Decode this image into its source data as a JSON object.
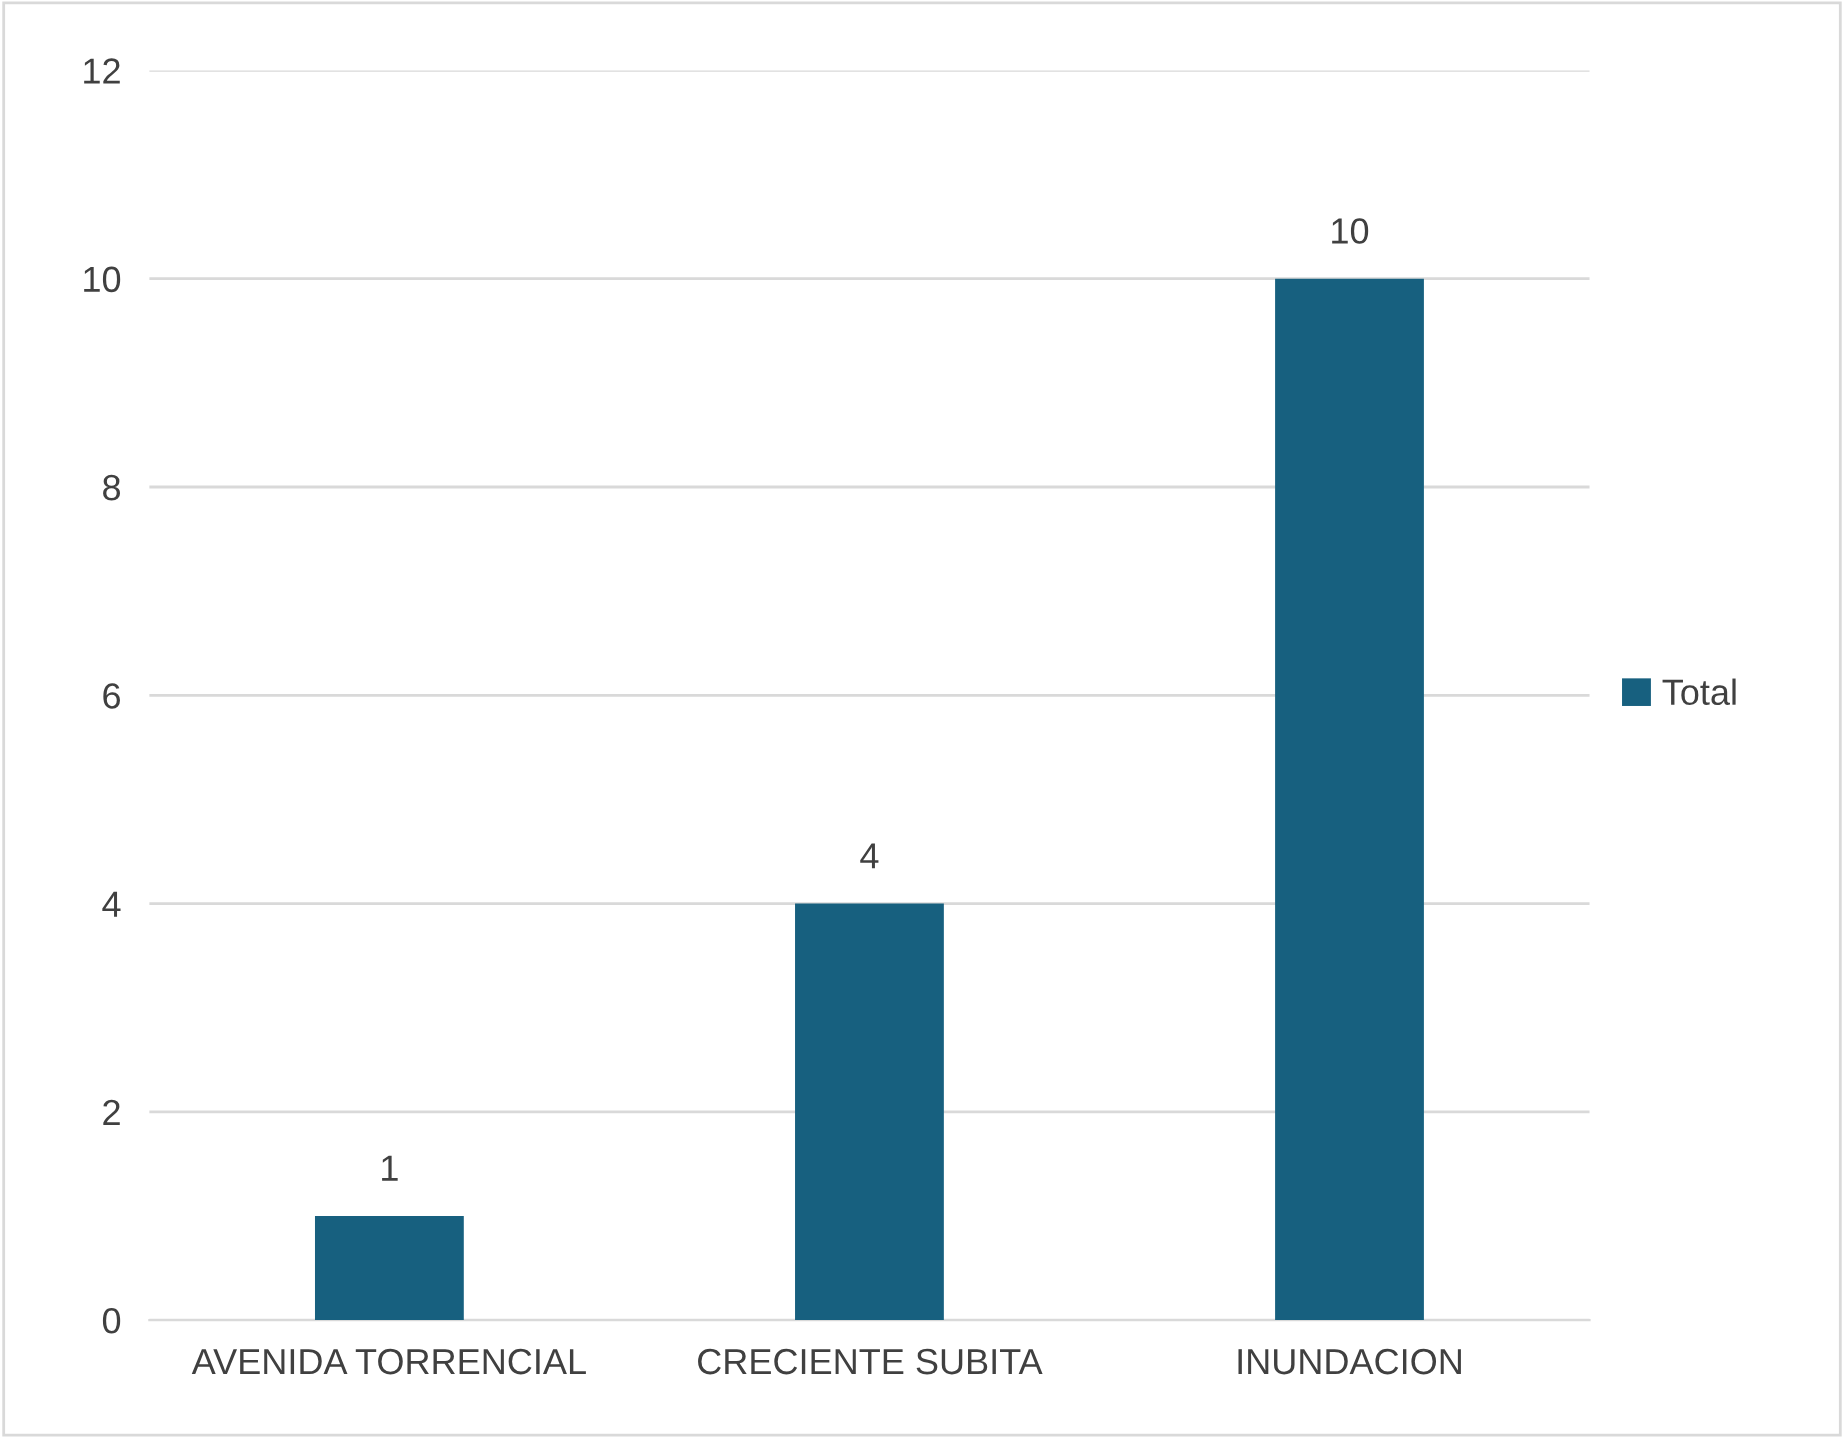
{
  "chart_data": {
    "type": "bar",
    "categories": [
      "AVENIDA TORRENCIAL",
      "CRECIENTE SUBITA",
      "INUNDACION"
    ],
    "series": [
      {
        "name": "Total",
        "color": "#17607f",
        "values": [
          1,
          4,
          10
        ]
      }
    ],
    "ylim": [
      0,
      12
    ],
    "yticks": [
      0,
      2,
      4,
      6,
      8,
      10,
      12
    ],
    "grid": "y",
    "legend": "right",
    "data_labels": true
  }
}
